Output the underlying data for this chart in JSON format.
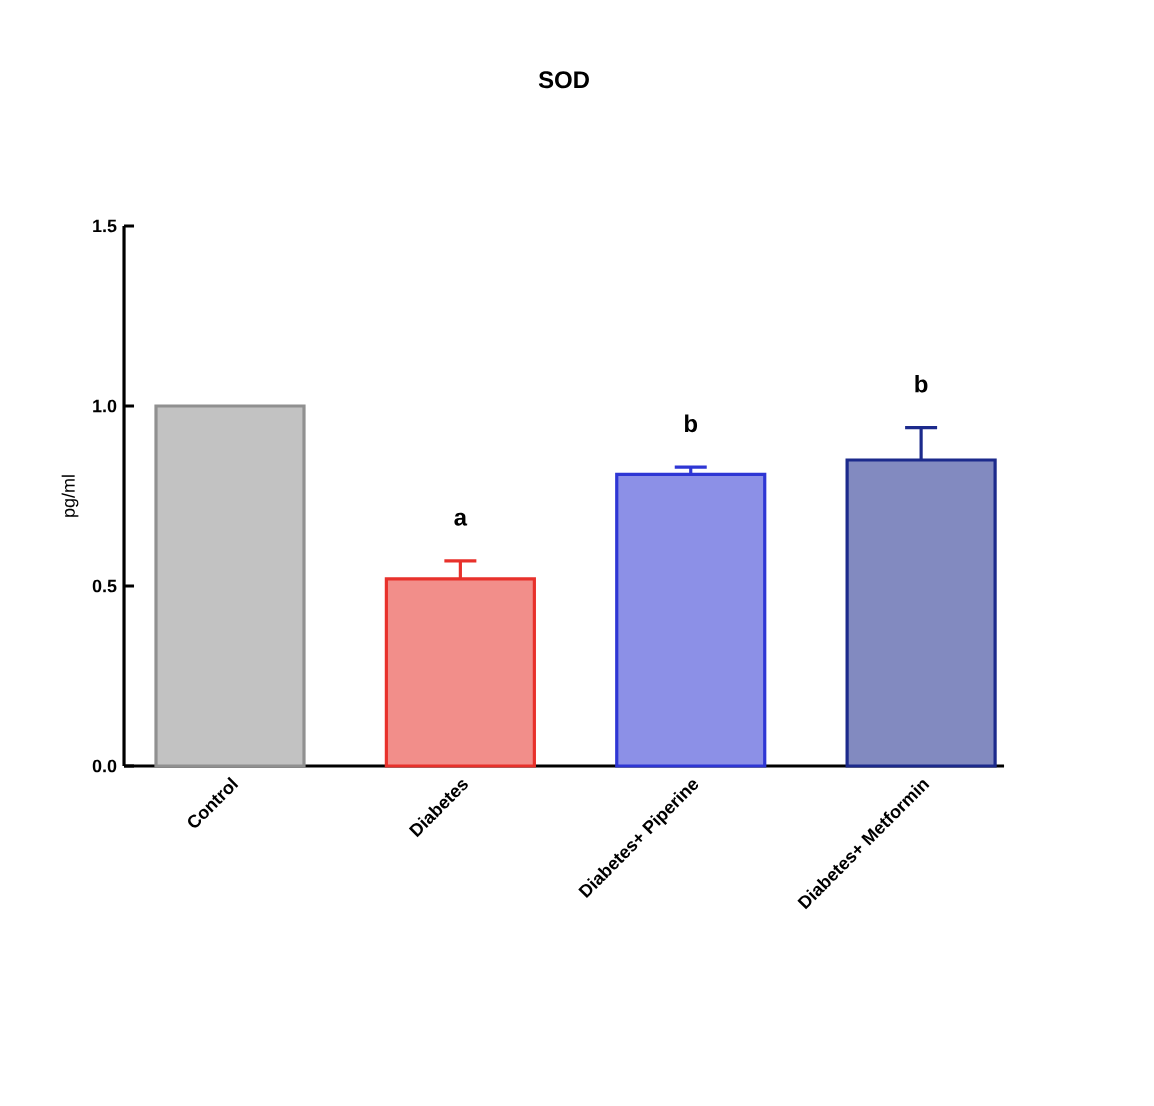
{
  "chart_data": {
    "type": "bar",
    "title": "SOD",
    "ylabel": "pg/ml",
    "categories": [
      "Control",
      "Diabetes",
      "Diabetes+ Piperine",
      "Diabetes+ Metformin"
    ],
    "values": [
      1.0,
      0.52,
      0.81,
      0.85
    ],
    "errors": [
      null,
      0.05,
      0.02,
      0.09
    ],
    "colors": [
      "#909090",
      "#e8312b",
      "#2e36d4",
      "#1c2a8c"
    ],
    "ylim": [
      0,
      1.5
    ],
    "yticks": [
      {
        "value": 0,
        "label": "0.0"
      },
      {
        "value": 0.5,
        "label": "0.5"
      },
      {
        "value": 1.0,
        "label": "1.0"
      },
      {
        "value": 1.5,
        "label": "1.5"
      }
    ],
    "value_labels": [
      null,
      "a",
      "b",
      "b"
    ]
  }
}
